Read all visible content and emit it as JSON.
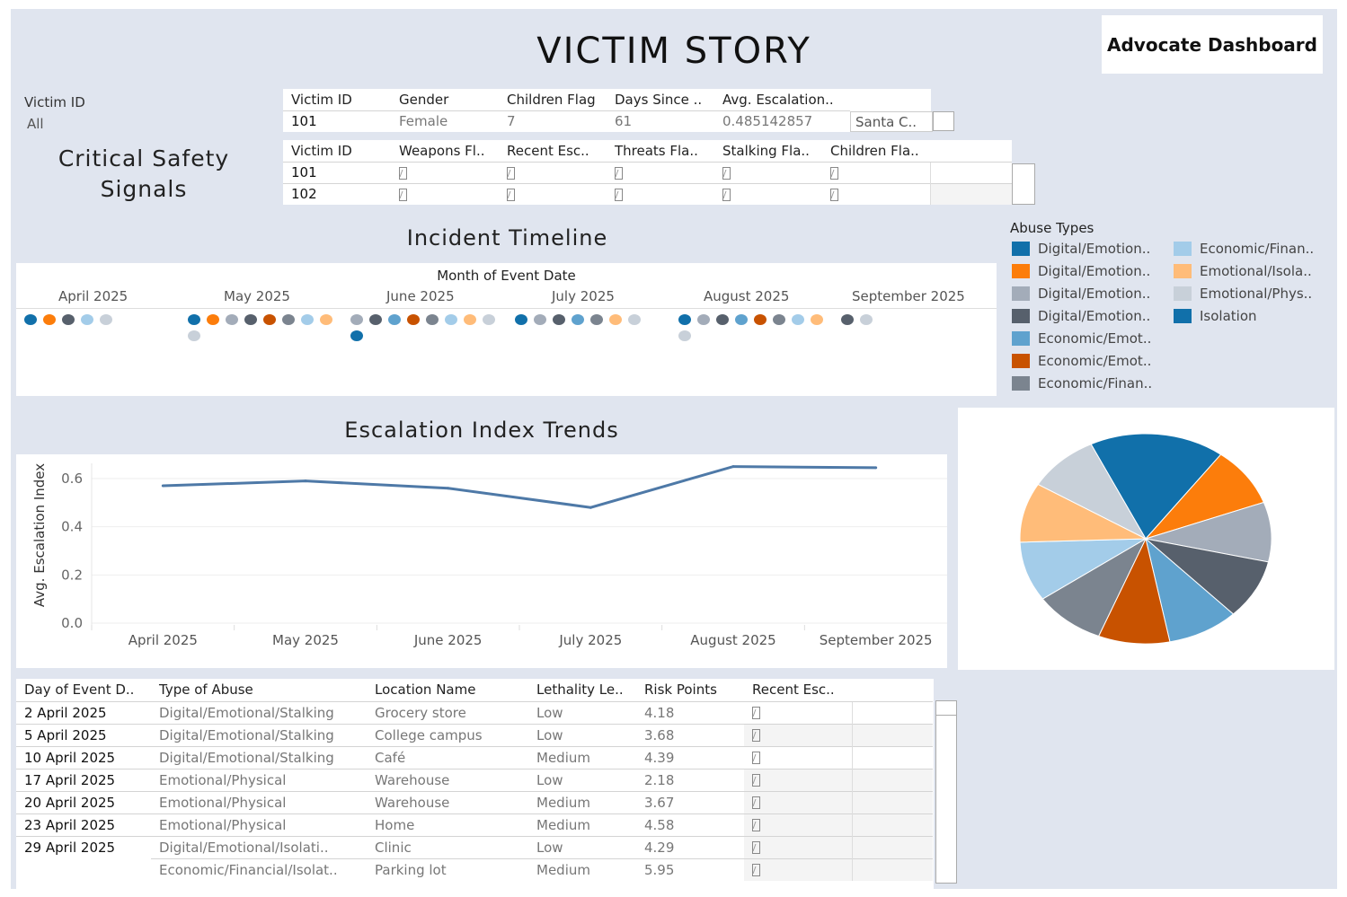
{
  "header": {
    "title": "VICTIM STORY",
    "advocate_button": "Advocate Dashboard"
  },
  "filter": {
    "label": "Victim ID",
    "value": "All"
  },
  "summary_table": {
    "columns": [
      "Victim ID",
      "Gender",
      "Children Flag",
      "Days Since ..",
      "Avg. Escalation.."
    ],
    "row": [
      "101",
      "Female",
      "7",
      "61",
      "0.485142857"
    ],
    "extra": "Santa C.."
  },
  "safety": {
    "title_line1": "Critical Safety",
    "title_line2": "Signals",
    "columns": [
      "Victim ID",
      "Weapons Fl..",
      "Recent Esc..",
      "Threats Fla..",
      "Stalking Fla..",
      "Children Fla.."
    ],
    "rows": [
      "101",
      "102"
    ]
  },
  "timeline": {
    "title": "Incident Timeline",
    "axis_title": "Month of Event Date",
    "months": [
      "April 2025",
      "May 2025",
      "June 2025",
      "July 2025",
      "August 2025",
      "September 2025"
    ]
  },
  "legend": {
    "title": "Abuse Types",
    "items": [
      {
        "label": "Digital/Emotion..",
        "color": "#1170aa"
      },
      {
        "label": "Digital/Emotion..",
        "color": "#fc7d0b"
      },
      {
        "label": "Digital/Emotion..",
        "color": "#a3acb9"
      },
      {
        "label": "Digital/Emotion..",
        "color": "#57606c"
      },
      {
        "label": "Economic/Emot..",
        "color": "#5fa2ce"
      },
      {
        "label": "Economic/Emot..",
        "color": "#c85200"
      },
      {
        "label": "Economic/Finan..",
        "color": "#7b848f"
      },
      {
        "label": "Economic/Finan..",
        "color": "#a3cce9"
      },
      {
        "label": "Emotional/Isola..",
        "color": "#ffbc79"
      },
      {
        "label": "Emotional/Phys..",
        "color": "#c8d0d9"
      },
      {
        "label": "Isolation",
        "color": "#1170aa"
      }
    ]
  },
  "chart_data": [
    {
      "type": "line",
      "title": "Escalation Index Trends",
      "xlabel": "",
      "ylabel": "Avg. Escalation Index",
      "categories": [
        "April 2025",
        "May 2025",
        "June 2025",
        "July 2025",
        "August 2025",
        "September 2025"
      ],
      "values": [
        0.57,
        0.59,
        0.56,
        0.48,
        0.65,
        0.645
      ],
      "ylim": [
        0,
        0.65
      ],
      "yticks": [
        "0.0",
        "0.2",
        "0.4",
        "0.6"
      ],
      "color": "#4e79a7"
    },
    {
      "type": "pie",
      "title": "",
      "slices": [
        {
          "label": "Isolation",
          "value": 17,
          "color": "#1170aa"
        },
        {
          "label": "Digital/Emotion..",
          "value": 9,
          "color": "#fc7d0b"
        },
        {
          "label": "Digital/Emotion..",
          "value": 9,
          "color": "#a3acb9"
        },
        {
          "label": "Digital/Emotion..",
          "value": 9,
          "color": "#57606c"
        },
        {
          "label": "Economic/Emot..",
          "value": 9,
          "color": "#5fa2ce"
        },
        {
          "label": "Economic/Emot..",
          "value": 9,
          "color": "#c85200"
        },
        {
          "label": "Economic/Finan..",
          "value": 9,
          "color": "#7b848f"
        },
        {
          "label": "Economic/Finan..",
          "value": 9,
          "color": "#a3cce9"
        },
        {
          "label": "Emotional/Isola..",
          "value": 9,
          "color": "#ffbc79"
        },
        {
          "label": "Emotional/Phys..",
          "value": 9,
          "color": "#c8d0d9"
        }
      ]
    }
  ],
  "timeline_dots": [
    {
      "month": 0,
      "row": 0,
      "colors": [
        "#1170aa",
        "#fc7d0b",
        "#57606c",
        "#a3cce9",
        "#c8d0d9"
      ]
    },
    {
      "month": 1,
      "row": 0,
      "colors": [
        "#1170aa",
        "#fc7d0b",
        "#a3acb9",
        "#57606c",
        "#c85200",
        "#7b848f",
        "#a3cce9",
        "#ffbc79"
      ]
    },
    {
      "month": 1,
      "row": 1,
      "colors": [
        "#c8d0d9"
      ]
    },
    {
      "month": 2,
      "row": 0,
      "colors": [
        "#a3acb9",
        "#57606c",
        "#5fa2ce",
        "#c85200",
        "#7b848f",
        "#a3cce9",
        "#ffbc79",
        "#c8d0d9"
      ]
    },
    {
      "month": 2,
      "row": 1,
      "colors": [
        "#1170aa"
      ]
    },
    {
      "month": 3,
      "row": 0,
      "colors": [
        "#1170aa",
        "#a3acb9",
        "#57606c",
        "#5fa2ce",
        "#7b848f",
        "#ffbc79",
        "#c8d0d9"
      ]
    },
    {
      "month": 4,
      "row": 0,
      "colors": [
        "#1170aa",
        "#a3acb9",
        "#57606c",
        "#5fa2ce",
        "#c85200",
        "#7b848f",
        "#a3cce9",
        "#ffbc79"
      ]
    },
    {
      "month": 4,
      "row": 1,
      "colors": [
        "#c8d0d9"
      ]
    },
    {
      "month": 5,
      "row": 0,
      "colors": [
        "#57606c",
        "#c8d0d9"
      ]
    }
  ],
  "events": {
    "columns": [
      "Day of Event D..",
      "Type of Abuse",
      "Location Name",
      "Lethality Le..",
      "Risk Points",
      "Recent Esc.."
    ],
    "rows": [
      [
        "2 April 2025",
        "Digital/Emotional/Stalking",
        "Grocery store",
        "Low",
        "4.18"
      ],
      [
        "5 April 2025",
        "Digital/Emotional/Stalking",
        "College campus",
        "Low",
        "3.68"
      ],
      [
        "10 April 2025",
        "Digital/Emotional/Stalking",
        "Café",
        "Medium",
        "4.39"
      ],
      [
        "17 April 2025",
        "Emotional/Physical",
        "Warehouse",
        "Low",
        "2.18"
      ],
      [
        "20 April 2025",
        "Emotional/Physical",
        "Warehouse",
        "Medium",
        "3.67"
      ],
      [
        "23 April 2025",
        "Emotional/Physical",
        "Home",
        "Medium",
        "4.58"
      ],
      [
        "29 April 2025",
        "Digital/Emotional/Isolati..",
        "Clinic",
        "Low",
        "4.29"
      ],
      [
        "",
        "Economic/Financial/Isolat..",
        "Parking lot",
        "Medium",
        "5.95"
      ]
    ]
  }
}
